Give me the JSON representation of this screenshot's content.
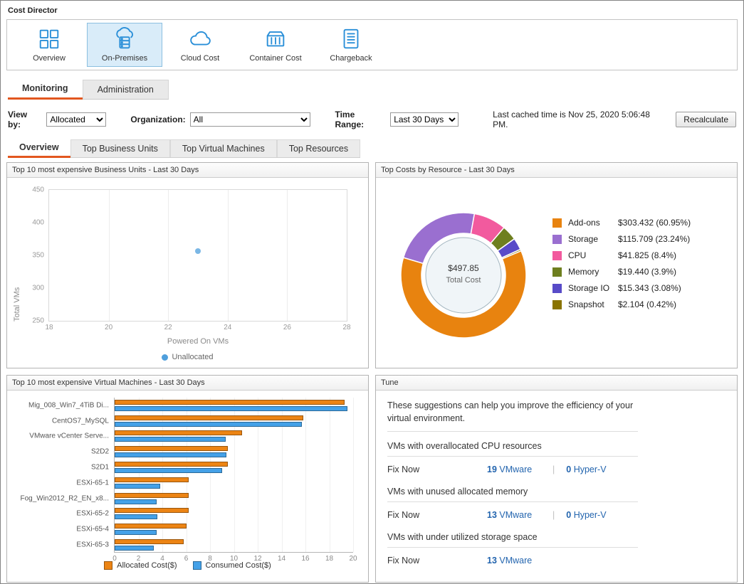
{
  "app": {
    "title": "Cost Director"
  },
  "toolbar": {
    "items": [
      {
        "label": "Overview",
        "selected": false
      },
      {
        "label": "On-Premises",
        "selected": true
      },
      {
        "label": "Cloud Cost",
        "selected": false
      },
      {
        "label": "Container Cost",
        "selected": false
      },
      {
        "label": "Chargeback",
        "selected": false
      }
    ]
  },
  "tabs": [
    {
      "label": "Monitoring",
      "active": true
    },
    {
      "label": "Administration",
      "active": false
    }
  ],
  "filters": {
    "view_by_label": "View by:",
    "view_by_value": "Allocated",
    "organization_label": "Organization:",
    "organization_value": "All",
    "time_range_label": "Time Range:",
    "time_range_value": "Last 30 Days",
    "cached_text": "Last cached time is Nov 25, 2020 5:06:48 PM.",
    "recalculate_label": "Recalculate"
  },
  "subtabs": [
    {
      "label": "Overview",
      "active": true
    },
    {
      "label": "Top Business Units",
      "active": false
    },
    {
      "label": "Top Virtual Machines",
      "active": false
    },
    {
      "label": "Top Resources",
      "active": false
    }
  ],
  "panels": {
    "business_units": {
      "title": "Top 10 most expensive Business Units - Last 30 Days"
    },
    "resources": {
      "title": "Top Costs by Resource - Last 30 Days"
    },
    "virtual_machines": {
      "title": "Top 10 most expensive Virtual Machines - Last 30 Days"
    },
    "tune": {
      "title": "Tune",
      "intro": "These suggestions can help you improve the efficiency of your virtual environment.",
      "suggestions": [
        {
          "heading": "VMs with overallocated CPU resources",
          "action": "Fix Now",
          "vmware_count": "19",
          "vmware_label": "VMware",
          "hyperv_count": "0",
          "hyperv_label": "Hyper-V"
        },
        {
          "heading": "VMs with unused allocated memory",
          "action": "Fix Now",
          "vmware_count": "13",
          "vmware_label": "VMware",
          "hyperv_count": "0",
          "hyperv_label": "Hyper-V"
        },
        {
          "heading": "VMs with under utilized storage space",
          "action": "Fix Now",
          "vmware_count": "13",
          "vmware_label": "VMware"
        }
      ]
    }
  },
  "chart_data": [
    {
      "type": "scatter",
      "title": "Top 10 most expensive Business Units - Last 30 Days",
      "xlabel": "Powered On VMs",
      "ylabel": "Total VMs",
      "xlim": [
        18,
        28
      ],
      "ylim": [
        250,
        450
      ],
      "xticks": [
        18,
        20,
        22,
        24,
        26,
        28
      ],
      "yticks": [
        250,
        300,
        350,
        400,
        450
      ],
      "grid": "vertical",
      "legend_position": "bottom",
      "series": [
        {
          "name": "Unallocated",
          "color": "#4f9fdc",
          "points": [
            {
              "x": 23,
              "y": 357
            }
          ]
        }
      ]
    },
    {
      "type": "pie",
      "title": "Top Costs by Resource - Last 30 Days",
      "center_value": "$497.85",
      "center_label": "Total Cost",
      "start_angle_deg": 67,
      "slices": [
        {
          "label": "Add-ons",
          "value": 303.432,
          "pct": 60.95,
          "display": "$303.432 (60.95%)",
          "color": "#e8830f"
        },
        {
          "label": "Storage",
          "value": 115.709,
          "pct": 23.24,
          "display": "$115.709 (23.24%)",
          "color": "#9a6fd0"
        },
        {
          "label": "CPU",
          "value": 41.825,
          "pct": 8.4,
          "display": "$41.825 (8.4%)",
          "color": "#f25a9e"
        },
        {
          "label": "Memory",
          "value": 19.44,
          "pct": 3.9,
          "display": "$19.440 (3.9%)",
          "color": "#6e7f1f"
        },
        {
          "label": "Storage IO",
          "value": 15.343,
          "pct": 3.08,
          "display": "$15.343 (3.08%)",
          "color": "#584bc8"
        },
        {
          "label": "Snapshot",
          "value": 2.104,
          "pct": 0.42,
          "display": "$2.104 (0.42%)",
          "color": "#8a7400"
        }
      ]
    },
    {
      "type": "bar",
      "orientation": "horizontal",
      "title": "Top 10 most expensive Virtual Machines - Last 30 Days",
      "categories": [
        "Mig_008_Win7_4TiB Di...",
        "CentOS7_MySQL",
        "VMware vCenter Serve...",
        "S2D2",
        "S2D1",
        "ESXi-65-1",
        "Fog_Win2012_R2_EN_x8...",
        "ESXi-65-2",
        "ESXi-65-4",
        "ESXi-65-3"
      ],
      "xlim": [
        0,
        20
      ],
      "xticks": [
        0,
        2,
        4,
        6,
        8,
        10,
        12,
        14,
        16,
        18,
        20
      ],
      "legend_position": "bottom",
      "series": [
        {
          "name": "Allocated Cost($)",
          "color": "#ec8414",
          "values": [
            19.3,
            15.8,
            10.7,
            9.5,
            9.5,
            6.2,
            6.2,
            6.2,
            6.0,
            5.8
          ]
        },
        {
          "name": "Consumed Cost($)",
          "color": "#44a1e8",
          "values": [
            19.5,
            15.7,
            9.3,
            9.4,
            9.0,
            3.8,
            3.5,
            3.6,
            3.5,
            3.3
          ]
        }
      ]
    }
  ]
}
